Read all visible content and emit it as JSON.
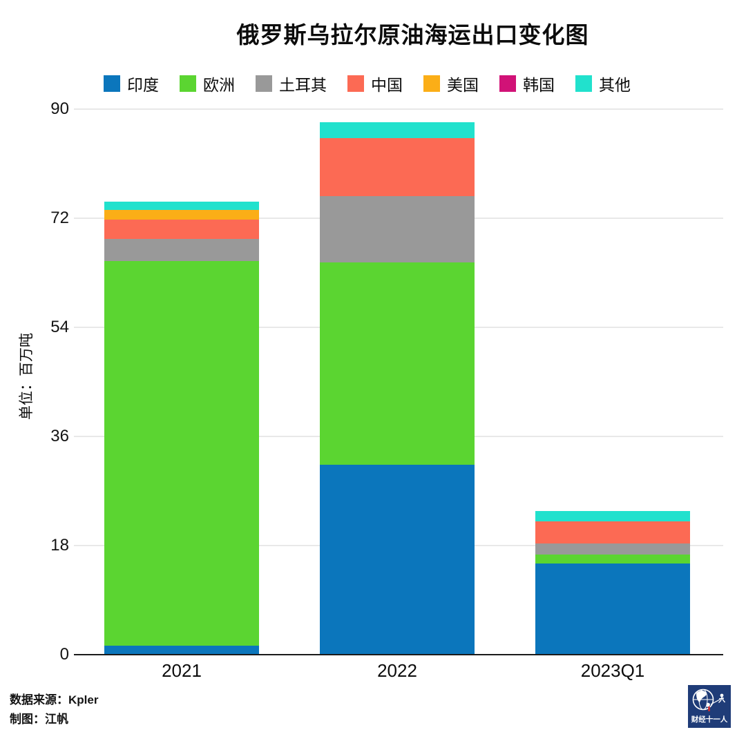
{
  "chart_data": {
    "type": "bar",
    "stacked": true,
    "title": "俄罗斯乌拉尔原油海运出口变化图",
    "ylabel": "单位：百万吨",
    "categories": [
      "2021",
      "2022",
      "2023Q1"
    ],
    "series": [
      {
        "key": "india",
        "name": "印度",
        "color": "#0B76BC",
        "values": [
          1.5,
          31.3,
          15.0
        ]
      },
      {
        "key": "europe",
        "name": "欧洲",
        "color": "#5BD531",
        "values": [
          63.4,
          33.4,
          1.5
        ]
      },
      {
        "key": "turkey",
        "name": "土耳其",
        "color": "#999999",
        "values": [
          3.7,
          10.9,
          1.9
        ]
      },
      {
        "key": "china",
        "name": "中国",
        "color": "#FC6A54",
        "values": [
          3.2,
          9.6,
          3.6
        ]
      },
      {
        "key": "usa",
        "name": "美国",
        "color": "#FBAE17",
        "values": [
          1.6,
          0,
          0
        ]
      },
      {
        "key": "korea",
        "name": "韩国",
        "color": "#D11277",
        "values": [
          0,
          0,
          0
        ]
      },
      {
        "key": "others",
        "name": "其他",
        "color": "#21E1CD",
        "values": [
          1.3,
          2.6,
          1.7
        ]
      }
    ],
    "totals": [
      74.7,
      87.8,
      23.7
    ],
    "yticks": [
      0,
      18,
      36,
      54,
      72,
      90
    ],
    "ylim": [
      0,
      90
    ],
    "grid": true,
    "legend_position": "top",
    "colors": {
      "gridline": "#E8E8E8",
      "axis": "#1A1A1A",
      "text": "#0c0c0c"
    }
  },
  "footer": {
    "source": "数据来源：Kpler",
    "credit": "制图：江帆"
  },
  "logo": {
    "text": "财经十一人",
    "background": "#1F3C78"
  }
}
